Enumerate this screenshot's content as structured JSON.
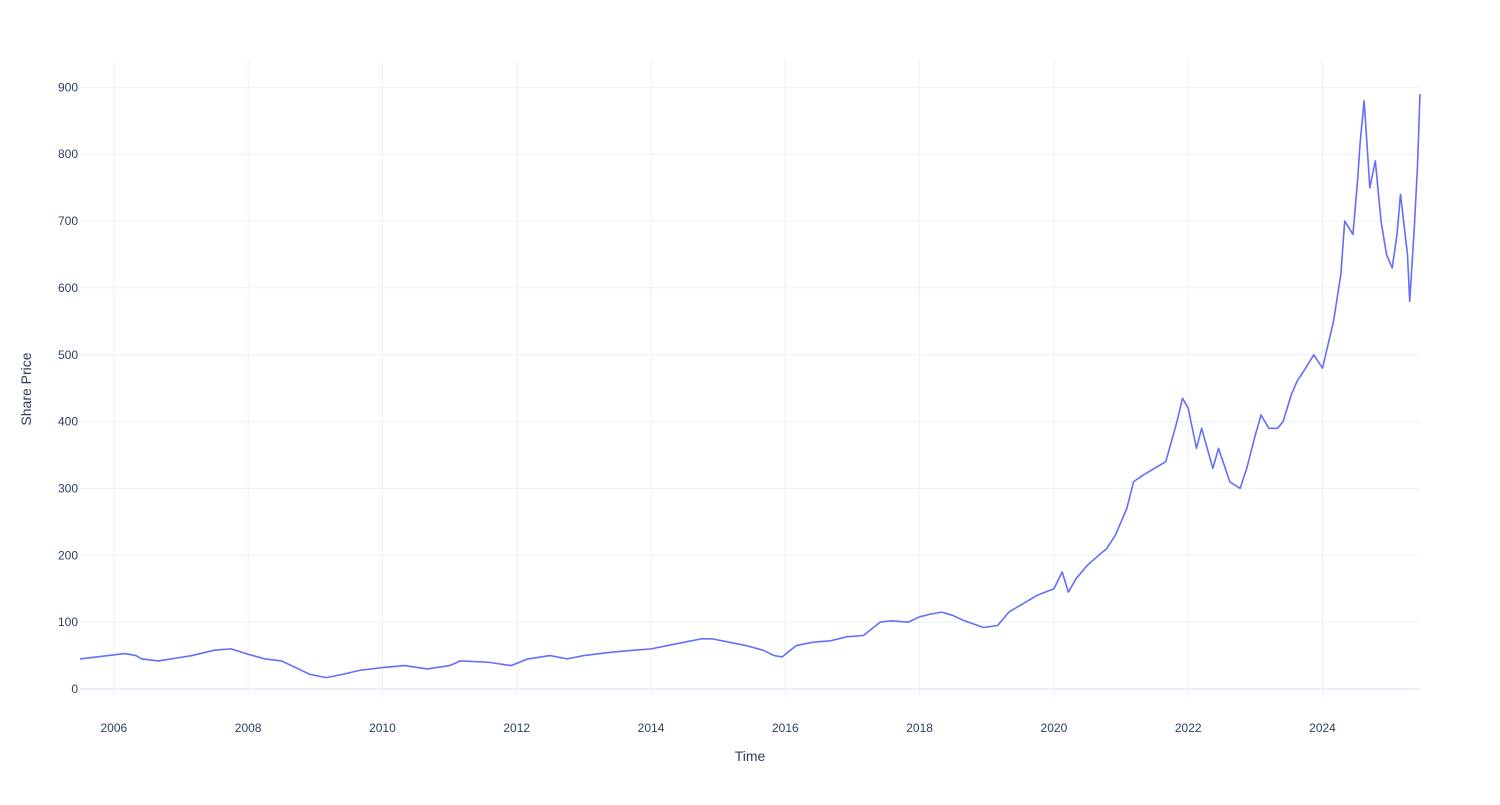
{
  "chart_data": {
    "type": "line",
    "title": "",
    "xlabel": "Time",
    "ylabel": "Share Price",
    "x_ticks": [
      "2006",
      "2008",
      "2010",
      "2012",
      "2014",
      "2016",
      "2018",
      "2020",
      "2022",
      "2024"
    ],
    "y_ticks": [
      "0",
      "100",
      "200",
      "300",
      "400",
      "500",
      "600",
      "700",
      "800",
      "900"
    ],
    "xlim": [
      "2005-07-01",
      "2025-06-15"
    ],
    "ylim": [
      -12,
      941
    ],
    "grid": true,
    "legend": "none",
    "colors": {
      "line": "#636efa",
      "grid": "#ebf0f8",
      "axis_text": "#2a3f5f",
      "background": "#ffffff"
    },
    "series": [
      {
        "x": [
          "2005-07-01",
          "2005-09-01",
          "2005-12-01",
          "2006-03-01",
          "2006-05-01",
          "2006-06-01",
          "2006-09-01",
          "2006-12-01",
          "2007-03-01",
          "2007-07-01",
          "2007-10-01",
          "2008-01-01",
          "2008-04-01",
          "2008-07-01",
          "2008-10-01",
          "2008-12-01",
          "2009-03-01",
          "2009-06-01",
          "2009-09-01",
          "2010-01-01",
          "2010-05-01",
          "2010-09-01",
          "2011-01-01",
          "2011-03-01",
          "2011-08-01",
          "2011-12-01",
          "2012-03-01",
          "2012-07-01",
          "2012-10-01",
          "2013-01-01",
          "2013-06-01",
          "2013-10-01",
          "2014-01-01",
          "2014-04-01",
          "2014-07-01",
          "2014-10-01",
          "2014-12-01",
          "2015-03-01",
          "2015-06-01",
          "2015-09-01",
          "2015-11-01",
          "2015-12-15",
          "2016-03-01",
          "2016-06-01",
          "2016-09-01",
          "2016-12-01",
          "2017-03-01",
          "2017-06-01",
          "2017-08-01",
          "2017-11-01",
          "2018-01-01",
          "2018-03-01",
          "2018-05-01",
          "2018-07-01",
          "2018-09-01",
          "2018-12-15",
          "2019-03-01",
          "2019-05-01",
          "2019-07-01",
          "2019-10-01",
          "2020-01-01",
          "2020-02-15",
          "2020-03-20",
          "2020-05-01",
          "2020-07-01",
          "2020-09-01",
          "2020-10-15",
          "2020-12-01",
          "2021-02-01",
          "2021-03-10",
          "2021-05-01",
          "2021-07-01",
          "2021-09-01",
          "2021-11-01",
          "2021-12-01",
          "2022-01-01",
          "2022-02-15",
          "2022-03-15",
          "2022-05-15",
          "2022-06-15",
          "2022-08-15",
          "2022-10-10",
          "2022-11-15",
          "2023-01-01",
          "2023-02-01",
          "2023-03-15",
          "2023-05-01",
          "2023-06-01",
          "2023-07-15",
          "2023-08-15",
          "2023-10-01",
          "2023-11-15",
          "2024-01-01",
          "2024-03-01",
          "2024-04-10",
          "2024-05-01",
          "2024-06-15",
          "2024-07-10",
          "2024-07-25",
          "2024-08-15",
          "2024-09-15",
          "2024-10-15",
          "2024-11-15",
          "2024-12-15",
          "2025-01-15",
          "2025-02-10",
          "2025-03-01",
          "2025-04-08",
          "2025-04-20",
          "2025-05-15",
          "2025-06-01",
          "2025-06-15"
        ],
        "y": [
          45,
          47,
          50,
          53,
          50,
          45,
          42,
          46,
          50,
          58,
          60,
          52,
          45,
          42,
          30,
          22,
          17,
          22,
          28,
          32,
          35,
          30,
          35,
          42,
          40,
          35,
          45,
          50,
          45,
          50,
          55,
          58,
          60,
          65,
          70,
          75,
          75,
          70,
          65,
          58,
          50,
          48,
          65,
          70,
          72,
          78,
          80,
          100,
          102,
          100,
          108,
          112,
          115,
          110,
          102,
          92,
          95,
          115,
          125,
          140,
          150,
          175,
          145,
          165,
          185,
          200,
          210,
          230,
          270,
          310,
          320,
          330,
          340,
          400,
          435,
          420,
          360,
          390,
          330,
          360,
          310,
          300,
          330,
          380,
          410,
          390,
          390,
          400,
          440,
          460,
          480,
          500,
          480,
          550,
          620,
          700,
          680,
          760,
          820,
          880,
          750,
          790,
          700,
          650,
          630,
          680,
          740,
          650,
          580,
          690,
          780,
          890
        ]
      }
    ]
  }
}
